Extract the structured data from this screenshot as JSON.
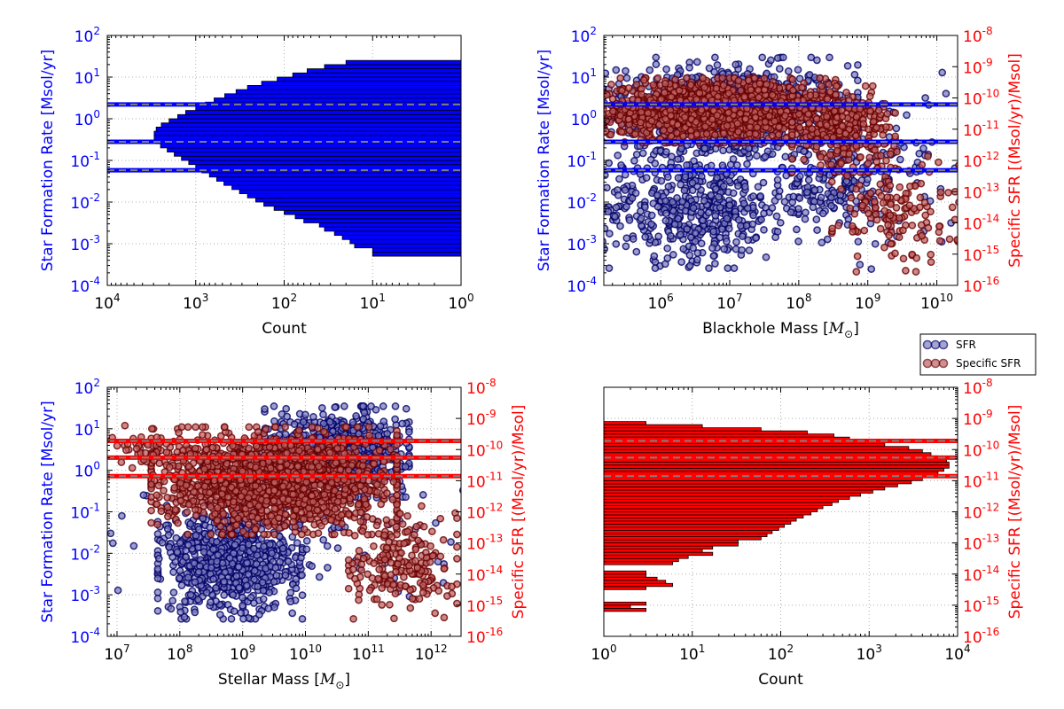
{
  "colors": {
    "sfr": "#0000ff",
    "ssfr": "#ff0000",
    "sfr_point_fill": "#7f7fbf",
    "sfr_point_edge": "#000066",
    "ssfr_point_fill": "#bf6060",
    "ssfr_point_edge": "#660000",
    "percentile_line": "#808080",
    "grid": "#b0b0b0"
  },
  "legend": {
    "entries": [
      {
        "label": "SFR",
        "series": "sfr"
      },
      {
        "label": "Specific SFR",
        "series": "ssfr"
      }
    ],
    "placement": "between right panels"
  },
  "chart_data": [
    {
      "id": "sfr-histogram",
      "type": "bar",
      "orientation": "horizontal",
      "xlabel": "Count",
      "ylabel": "Star Formation Rate [Msol/yr]",
      "x_scale": "log",
      "x_reversed": true,
      "xlim": [
        1,
        10000
      ],
      "x_ticks": [
        {
          "value": 10000,
          "exp": "4"
        },
        {
          "value": 1000,
          "exp": "3"
        },
        {
          "value": 100,
          "exp": "2"
        },
        {
          "value": 10,
          "exp": "1"
        },
        {
          "value": 1,
          "exp": "0"
        }
      ],
      "y_scale": "log",
      "ylim": [
        0.0001,
        100
      ],
      "y_ticks": [
        {
          "value": 0.0001,
          "exp": "-4"
        },
        {
          "value": 0.001,
          "exp": "-3"
        },
        {
          "value": 0.01,
          "exp": "-2"
        },
        {
          "value": 0.1,
          "exp": "-1"
        },
        {
          "value": 1,
          "exp": "0"
        },
        {
          "value": 10,
          "exp": "1"
        },
        {
          "value": 100,
          "exp": "2"
        }
      ],
      "grid": true,
      "bar_color": "#0000ff",
      "bins_log10": [
        [
          -3.5,
          -3.4,
          1
        ],
        [
          -3.4,
          -3.3,
          1
        ],
        [
          -3.3,
          -3.2,
          10
        ],
        [
          -3.2,
          -3.1,
          10
        ],
        [
          -3.1,
          -3.0,
          16
        ],
        [
          -3.0,
          -2.9,
          18
        ],
        [
          -2.9,
          -2.8,
          22
        ],
        [
          -2.8,
          -2.7,
          27
        ],
        [
          -2.7,
          -2.6,
          35
        ],
        [
          -2.6,
          -2.5,
          40
        ],
        [
          -2.5,
          -2.4,
          60
        ],
        [
          -2.4,
          -2.3,
          75
        ],
        [
          -2.3,
          -2.2,
          100
        ],
        [
          -2.2,
          -2.1,
          130
        ],
        [
          -2.1,
          -2.0,
          170
        ],
        [
          -2.0,
          -1.9,
          210
        ],
        [
          -1.9,
          -1.8,
          260
        ],
        [
          -1.8,
          -1.7,
          320
        ],
        [
          -1.7,
          -1.6,
          390
        ],
        [
          -1.6,
          -1.5,
          480
        ],
        [
          -1.5,
          -1.4,
          580
        ],
        [
          -1.4,
          -1.3,
          700
        ],
        [
          -1.3,
          -1.2,
          850
        ],
        [
          -1.2,
          -1.1,
          1000
        ],
        [
          -1.1,
          -1.0,
          1200
        ],
        [
          -1.0,
          -0.9,
          1450
        ],
        [
          -0.9,
          -0.8,
          1750
        ],
        [
          -0.8,
          -0.7,
          2100
        ],
        [
          -0.7,
          -0.6,
          2500
        ],
        [
          -0.6,
          -0.5,
          2800
        ],
        [
          -0.5,
          -0.4,
          2950
        ],
        [
          -0.4,
          -0.3,
          2950
        ],
        [
          -0.3,
          -0.2,
          2800
        ],
        [
          -0.2,
          -0.1,
          2450
        ],
        [
          -0.1,
          0.0,
          2000
        ],
        [
          0.0,
          0.1,
          1600
        ],
        [
          0.1,
          0.2,
          1300
        ],
        [
          0.2,
          0.3,
          1000
        ],
        [
          0.3,
          0.4,
          780
        ],
        [
          0.4,
          0.5,
          620
        ],
        [
          0.5,
          0.6,
          470
        ],
        [
          0.6,
          0.7,
          350
        ],
        [
          0.7,
          0.8,
          260
        ],
        [
          0.8,
          0.9,
          180
        ],
        [
          0.9,
          1.0,
          120
        ],
        [
          1.0,
          1.1,
          80
        ],
        [
          1.1,
          1.2,
          55
        ],
        [
          1.2,
          1.3,
          35
        ],
        [
          1.3,
          1.4,
          20
        ],
        [
          1.4,
          1.5,
          1
        ]
      ],
      "hlines_sfr": [
        0.058,
        0.28,
        2.2
      ]
    },
    {
      "id": "sfr-vs-bh-mass",
      "type": "scatter",
      "xlabel": "Blackhole Mass [",
      "xlabel_symbol": "M",
      "xlabel_sub": "⊙",
      "xlabel_close": "]",
      "ylabel": "Star Formation Rate [Msol/yr]",
      "ylabel_right": "Specific SFR [(Msol/yr)/Msol]",
      "x_scale": "log",
      "xlim": [
        150000,
        20000000000
      ],
      "x_ticks": [
        {
          "value": 1000000,
          "exp": "6"
        },
        {
          "value": 10000000,
          "exp": "7"
        },
        {
          "value": 100000000,
          "exp": "8"
        },
        {
          "value": 1000000000,
          "exp": "9"
        },
        {
          "value": 10000000000,
          "exp": "10"
        }
      ],
      "y_scale": "log",
      "ylim": [
        0.0001,
        100
      ],
      "y_ticks": [
        {
          "value": 0.0001,
          "exp": "-4"
        },
        {
          "value": 0.001,
          "exp": "-3"
        },
        {
          "value": 0.01,
          "exp": "-2"
        },
        {
          "value": 0.1,
          "exp": "-1"
        },
        {
          "value": 1,
          "exp": "0"
        },
        {
          "value": 10,
          "exp": "1"
        },
        {
          "value": 100,
          "exp": "2"
        }
      ],
      "y2_scale": "log",
      "y2lim": [
        1e-16,
        1e-08
      ],
      "y2_ticks": [
        {
          "value": 1e-16,
          "exp": "-16"
        },
        {
          "value": 1e-15,
          "exp": "-15"
        },
        {
          "value": 1e-14,
          "exp": "-14"
        },
        {
          "value": 1e-13,
          "exp": "-13"
        },
        {
          "value": 1e-12,
          "exp": "-12"
        },
        {
          "value": 1e-11,
          "exp": "-11"
        },
        {
          "value": 1e-10,
          "exp": "-10"
        },
        {
          "value": 1e-09,
          "exp": "-9"
        },
        {
          "value": 1e-08,
          "exp": "-8"
        }
      ],
      "grid": true,
      "hlines_sfr": [
        0.058,
        0.28,
        2.2
      ],
      "series": [
        {
          "name": "SFR",
          "axis": "left",
          "clusters": [
            {
              "x_log": [
                5.2,
                8.6
              ],
              "y_log": [
                -1.0,
                1.3
              ],
              "n": 900
            },
            {
              "x_log": [
                5.2,
                7.8
              ],
              "y_log": [
                -3.4,
                -0.9
              ],
              "n": 500
            },
            {
              "x_log": [
                7.8,
                9.2
              ],
              "y_log": [
                -2.8,
                -0.5
              ],
              "n": 160
            },
            {
              "x_log": [
                8.8,
                10.2
              ],
              "y_log": [
                -3.3,
                0.8
              ],
              "n": 60
            }
          ]
        },
        {
          "name": "Specific SFR",
          "axis": "right",
          "clusters": [
            {
              "x_log": [
                5.2,
                8.3
              ],
              "y_log": [
                -11.3,
                -9.5
              ],
              "n": 1500
            },
            {
              "x_log": [
                8.0,
                9.3
              ],
              "y_log": [
                -12.2,
                -9.8
              ],
              "n": 300
            },
            {
              "x_log": [
                8.6,
                10.2
              ],
              "y_log": [
                -15.3,
                -11.8
              ],
              "n": 150
            }
          ]
        }
      ]
    },
    {
      "id": "sfr-vs-stellar-mass",
      "type": "scatter",
      "xlabel": "Stellar Mass [",
      "xlabel_symbol": "M",
      "xlabel_sub": "⊙",
      "xlabel_close": "]",
      "ylabel": "Star Formation Rate [Msol/yr]",
      "ylabel_right": "Specific SFR [(Msol/yr)/Msol]",
      "x_scale": "log",
      "xlim": [
        7000000,
        3000000000000
      ],
      "x_ticks": [
        {
          "value": 10000000,
          "exp": "7"
        },
        {
          "value": 100000000,
          "exp": "8"
        },
        {
          "value": 1000000000,
          "exp": "9"
        },
        {
          "value": 10000000000,
          "exp": "10"
        },
        {
          "value": 100000000000,
          "exp": "11"
        },
        {
          "value": 1000000000000,
          "exp": "12"
        }
      ],
      "y_scale": "log",
      "ylim": [
        0.0001,
        100
      ],
      "y_ticks": [
        {
          "value": 0.0001,
          "exp": "-4"
        },
        {
          "value": 0.001,
          "exp": "-3"
        },
        {
          "value": 0.01,
          "exp": "-2"
        },
        {
          "value": 0.1,
          "exp": "-1"
        },
        {
          "value": 1,
          "exp": "0"
        },
        {
          "value": 10,
          "exp": "1"
        },
        {
          "value": 100,
          "exp": "2"
        }
      ],
      "y2_scale": "log",
      "y2lim": [
        1e-16,
        1e-08
      ],
      "y2_ticks": [
        {
          "value": 1e-16,
          "exp": "-16"
        },
        {
          "value": 1e-15,
          "exp": "-15"
        },
        {
          "value": 1e-14,
          "exp": "-14"
        },
        {
          "value": 1e-13,
          "exp": "-13"
        },
        {
          "value": 1e-12,
          "exp": "-12"
        },
        {
          "value": 1e-11,
          "exp": "-11"
        },
        {
          "value": 1e-10,
          "exp": "-10"
        },
        {
          "value": 1e-09,
          "exp": "-9"
        },
        {
          "value": 1e-08,
          "exp": "-8"
        }
      ],
      "grid": true,
      "hlines_ssfr": [
        1.4e-11,
        5.5e-11,
        1.9e-10
      ],
      "series": [
        {
          "name": "SFR",
          "axis": "left",
          "clusters": [
            {
              "x_log": [
                7.8,
                9.8
              ],
              "y_log": [
                -3.4,
                -1.0
              ],
              "n": 700
            },
            {
              "x_log": [
                9.5,
                11.5
              ],
              "y_log": [
                -0.5,
                1.4
              ],
              "n": 800
            },
            {
              "x_log": [
                7.0,
                12.3
              ],
              "y_log": [
                -3.2,
                0.5
              ],
              "n": 120
            }
          ]
        },
        {
          "name": "Specific SFR",
          "axis": "right",
          "clusters": [
            {
              "x_log": [
                7.8,
                11.2
              ],
              "y_log": [
                -12.5,
                -9.5
              ],
              "n": 1600
            },
            {
              "x_log": [
                10.8,
                12.3
              ],
              "y_log": [
                -15.2,
                -12.0
              ],
              "n": 200
            },
            {
              "x_log": [
                7.0,
                8.0
              ],
              "y_log": [
                -10.5,
                -9.3
              ],
              "n": 40
            }
          ]
        }
      ]
    },
    {
      "id": "ssfr-histogram",
      "type": "bar",
      "orientation": "horizontal",
      "xlabel": "Count",
      "ylabel_right": "Specific SFR [(Msol/yr)/Msol]",
      "x_scale": "log",
      "x_reversed": false,
      "xlim": [
        1,
        10000
      ],
      "x_ticks": [
        {
          "value": 1,
          "exp": "0"
        },
        {
          "value": 10,
          "exp": "1"
        },
        {
          "value": 100,
          "exp": "2"
        },
        {
          "value": 1000,
          "exp": "3"
        },
        {
          "value": 10000,
          "exp": "4"
        }
      ],
      "y_scale": "log",
      "ylim": [
        1e-16,
        1e-08
      ],
      "y_ticks": [
        {
          "value": 1e-16,
          "exp": "-16"
        },
        {
          "value": 1e-15,
          "exp": "-15"
        },
        {
          "value": 1e-14,
          "exp": "-14"
        },
        {
          "value": 1e-13,
          "exp": "-13"
        },
        {
          "value": 1e-12,
          "exp": "-12"
        },
        {
          "value": 1e-11,
          "exp": "-11"
        },
        {
          "value": 1e-10,
          "exp": "-10"
        },
        {
          "value": 1e-09,
          "exp": "-9"
        },
        {
          "value": 1e-08,
          "exp": "-8"
        }
      ],
      "grid": true,
      "bar_color": "#ff0000",
      "bins_log10": [
        [
          -15.2,
          -15.1,
          3
        ],
        [
          -15.1,
          -15.0,
          2
        ],
        [
          -15.0,
          -14.9,
          3
        ],
        [
          -14.5,
          -14.4,
          3
        ],
        [
          -14.4,
          -14.3,
          6
        ],
        [
          -14.3,
          -14.2,
          5
        ],
        [
          -14.2,
          -14.1,
          4
        ],
        [
          -14.1,
          -14.0,
          3
        ],
        [
          -14.0,
          -13.9,
          3
        ],
        [
          -13.7,
          -13.6,
          6
        ],
        [
          -13.6,
          -13.5,
          7
        ],
        [
          -13.5,
          -13.4,
          9
        ],
        [
          -13.4,
          -13.3,
          17
        ],
        [
          -13.3,
          -13.2,
          13
        ],
        [
          -13.2,
          -13.1,
          17
        ],
        [
          -13.1,
          -13.0,
          33
        ],
        [
          -13.0,
          -12.9,
          33
        ],
        [
          -12.9,
          -12.8,
          60
        ],
        [
          -12.8,
          -12.7,
          70
        ],
        [
          -12.7,
          -12.6,
          80
        ],
        [
          -12.6,
          -12.5,
          95
        ],
        [
          -12.5,
          -12.4,
          110
        ],
        [
          -12.4,
          -12.3,
          130
        ],
        [
          -12.3,
          -12.2,
          150
        ],
        [
          -12.2,
          -12.1,
          180
        ],
        [
          -12.1,
          -12.0,
          220
        ],
        [
          -12.0,
          -11.9,
          260
        ],
        [
          -11.9,
          -11.8,
          300
        ],
        [
          -11.8,
          -11.7,
          380
        ],
        [
          -11.7,
          -11.6,
          450
        ],
        [
          -11.6,
          -11.5,
          600
        ],
        [
          -11.5,
          -11.4,
          800
        ],
        [
          -11.4,
          -11.3,
          1100
        ],
        [
          -11.3,
          -11.2,
          1500
        ],
        [
          -11.2,
          -11.1,
          2100
        ],
        [
          -11.1,
          -11.0,
          3000
        ],
        [
          -11.0,
          -10.9,
          4000
        ],
        [
          -10.9,
          -10.8,
          5000
        ],
        [
          -10.8,
          -10.7,
          6000
        ],
        [
          -10.7,
          -10.6,
          7000
        ],
        [
          -10.6,
          -10.5,
          8000
        ],
        [
          -10.5,
          -10.4,
          8000
        ],
        [
          -10.4,
          -10.3,
          7500
        ],
        [
          -10.3,
          -10.2,
          6000
        ],
        [
          -10.2,
          -10.1,
          5000
        ],
        [
          -10.1,
          -10.0,
          4000
        ],
        [
          -10.0,
          -9.9,
          2800
        ],
        [
          -9.9,
          -9.8,
          1500
        ],
        [
          -9.8,
          -9.7,
          900
        ],
        [
          -9.7,
          -9.6,
          600
        ],
        [
          -9.6,
          -9.5,
          400
        ],
        [
          -9.5,
          -9.4,
          200
        ],
        [
          -9.4,
          -9.3,
          60
        ],
        [
          -9.3,
          -9.2,
          13
        ],
        [
          -9.2,
          -9.1,
          3
        ]
      ],
      "hlines_ssfr": [
        1.4e-11,
        5.5e-11,
        1.9e-10
      ]
    }
  ]
}
